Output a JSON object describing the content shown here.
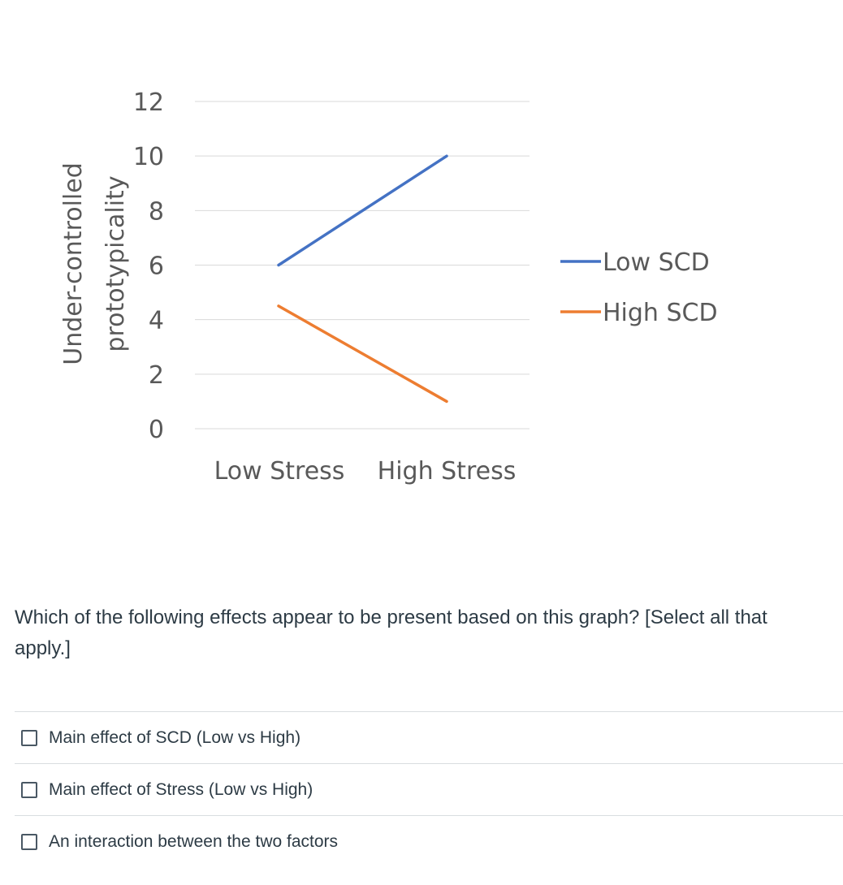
{
  "chart_data": {
    "type": "line",
    "title": "",
    "ylabel": "Under-controlled prototypicality",
    "xlabel": "",
    "categories": [
      "Low Stress",
      "High Stress"
    ],
    "ylim": [
      0,
      12
    ],
    "yticks": [
      "0",
      "2",
      "4",
      "6",
      "8",
      "10",
      "12"
    ],
    "grid": true,
    "legend_position": "right",
    "series": [
      {
        "name": "Low SCD",
        "values": [
          6,
          10
        ],
        "color": "#4472c4"
      },
      {
        "name": "High SCD",
        "values": [
          4.5,
          1
        ],
        "color": "#ed7d31"
      }
    ]
  },
  "question": {
    "text": "Which of the following effects appear to be present based on this graph? [Select all that apply.]"
  },
  "answers": [
    {
      "label": "Main effect of SCD (Low vs High)",
      "checked": false
    },
    {
      "label": "Main effect of Stress (Low vs High)",
      "checked": false
    },
    {
      "label": "An interaction between the two factors",
      "checked": false
    }
  ]
}
